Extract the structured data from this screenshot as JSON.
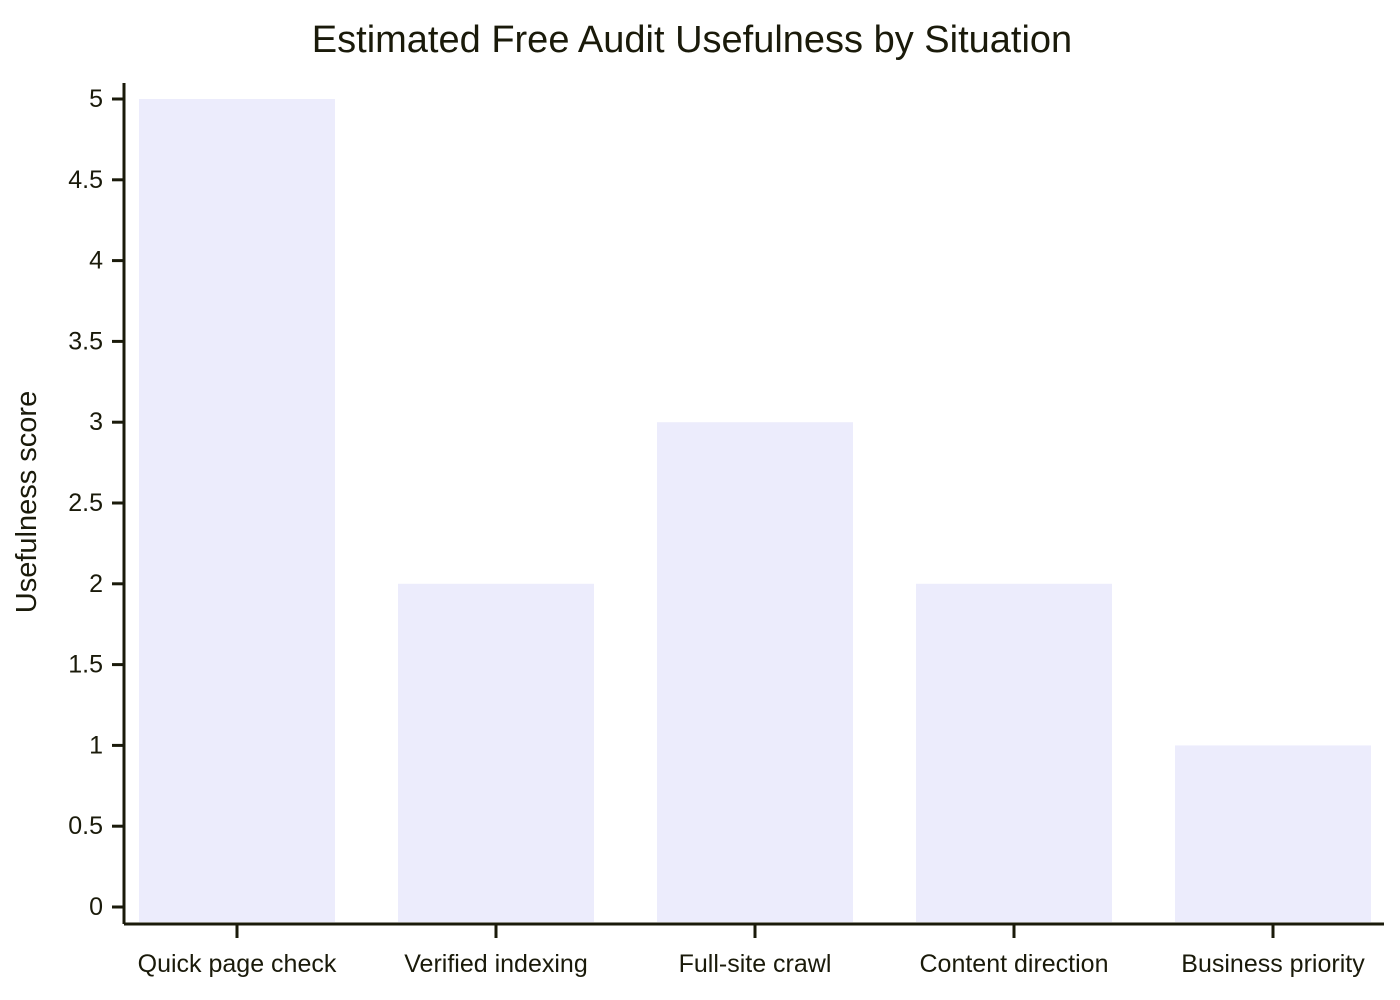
{
  "chart_data": {
    "type": "bar",
    "title": "Estimated Free Audit Usefulness by Situation",
    "xlabel": "",
    "ylabel": "Usefulness score",
    "categories": [
      "Quick page check",
      "Verified indexing",
      "Full-site crawl",
      "Content direction",
      "Business priority"
    ],
    "values": [
      5,
      2,
      3,
      2,
      1
    ],
    "ylim": [
      0,
      5
    ],
    "yticks": [
      "0",
      "0.5",
      "1",
      "1.5",
      "2",
      "2.5",
      "3",
      "3.5",
      "4",
      "4.5",
      "5"
    ],
    "bar_color": "#ececfc",
    "grid": false,
    "legend": "none"
  }
}
